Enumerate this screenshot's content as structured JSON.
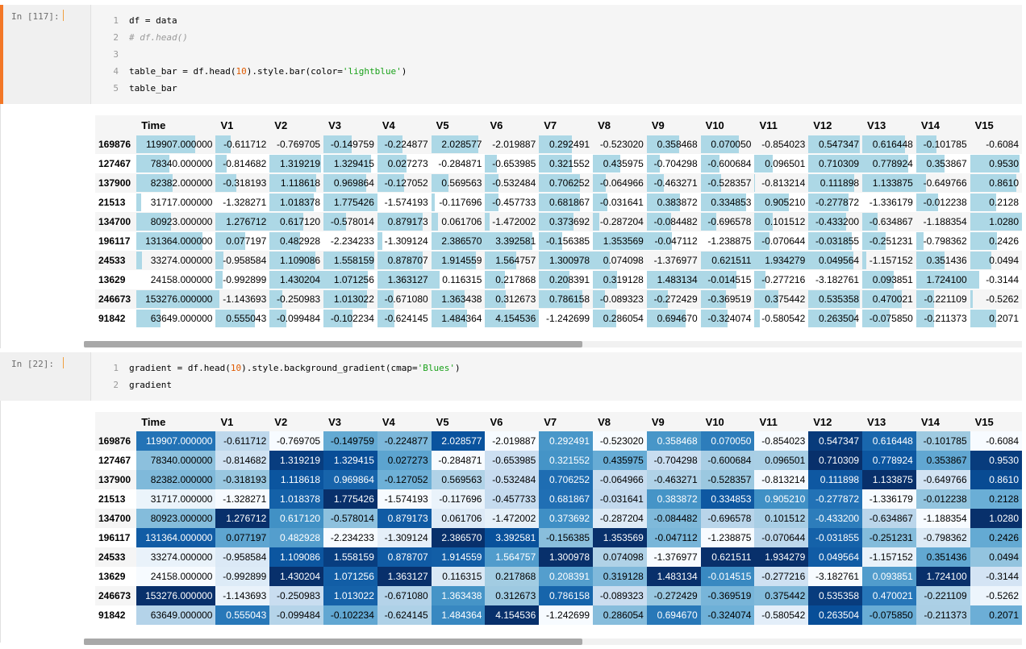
{
  "cells": [
    {
      "prompt": "In [117]:",
      "code": [
        {
          "n": "1",
          "parts": [
            {
              "t": "df = data",
              "c": ""
            }
          ]
        },
        {
          "n": "2",
          "parts": [
            {
              "t": "# df.head()",
              "c": "kw-comment"
            }
          ]
        },
        {
          "n": "3",
          "parts": [
            {
              "t": "",
              "c": ""
            }
          ]
        },
        {
          "n": "4",
          "parts": [
            {
              "t": "table_bar = df.head(",
              "c": ""
            },
            {
              "t": "10",
              "c": "kw-num"
            },
            {
              "t": ").style.bar(color=",
              "c": ""
            },
            {
              "t": "'lightblue'",
              "c": "kw-str"
            },
            {
              "t": ")",
              "c": ""
            }
          ]
        },
        {
          "n": "5",
          "parts": [
            {
              "t": "table_bar",
              "c": ""
            }
          ]
        }
      ]
    },
    {
      "prompt": "In [22]:",
      "code": [
        {
          "n": "1",
          "parts": [
            {
              "t": "gradient = df.head(",
              "c": ""
            },
            {
              "t": "10",
              "c": "kw-num"
            },
            {
              "t": ").style.background_gradient(cmap=",
              "c": ""
            },
            {
              "t": "'Blues'",
              "c": "kw-str"
            },
            {
              "t": ")",
              "c": ""
            }
          ]
        },
        {
          "n": "2",
          "parts": [
            {
              "t": "gradient",
              "c": ""
            }
          ]
        }
      ]
    }
  ],
  "table": {
    "columns": [
      "Time",
      "V1",
      "V2",
      "V3",
      "V4",
      "V5",
      "V6",
      "V7",
      "V8",
      "V9",
      "V10",
      "V11",
      "V12",
      "V13",
      "V14",
      "V15"
    ],
    "rows": [
      {
        "index": "169876",
        "values": [
          "119907.000000",
          "-0.611712",
          "-0.769705",
          "-0.149759",
          "-0.224877",
          "2.028577",
          "-2.019887",
          "0.292491",
          "-0.523020",
          "0.358468",
          "0.070050",
          "-0.854023",
          "0.547347",
          "0.616448",
          "-0.101785",
          "-0.6084"
        ]
      },
      {
        "index": "127467",
        "values": [
          "78340.000000",
          "-0.814682",
          "1.319219",
          "1.329415",
          "0.027273",
          "-0.284871",
          "-0.653985",
          "0.321552",
          "0.435975",
          "-0.704298",
          "-0.600684",
          "0.096501",
          "0.710309",
          "0.778924",
          "0.353867",
          "0.9530"
        ]
      },
      {
        "index": "137900",
        "values": [
          "82382.000000",
          "-0.318193",
          "1.118618",
          "0.969864",
          "-0.127052",
          "0.569563",
          "-0.532484",
          "0.706252",
          "-0.064966",
          "-0.463271",
          "-0.528357",
          "-0.813214",
          "0.111898",
          "1.133875",
          "-0.649766",
          "0.8610"
        ]
      },
      {
        "index": "21513",
        "values": [
          "31717.000000",
          "-1.328271",
          "1.018378",
          "1.775426",
          "-1.574193",
          "-0.117696",
          "-0.457733",
          "0.681867",
          "-0.031641",
          "0.383872",
          "0.334853",
          "0.905210",
          "-0.277872",
          "-1.336179",
          "-0.012238",
          "0.2128"
        ]
      },
      {
        "index": "134700",
        "values": [
          "80923.000000",
          "1.276712",
          "0.617120",
          "-0.578014",
          "0.879173",
          "0.061706",
          "-1.472002",
          "0.373692",
          "-0.287204",
          "-0.084482",
          "-0.696578",
          "0.101512",
          "-0.433200",
          "-0.634867",
          "-1.188354",
          "1.0280"
        ]
      },
      {
        "index": "196117",
        "values": [
          "131364.000000",
          "0.077197",
          "0.482928",
          "-2.234233",
          "-1.309124",
          "2.386570",
          "3.392581",
          "-0.156385",
          "1.353569",
          "-0.047112",
          "-1.238875",
          "-0.070644",
          "-0.031855",
          "-0.251231",
          "-0.798362",
          "0.2426"
        ]
      },
      {
        "index": "24533",
        "values": [
          "33274.000000",
          "-0.958584",
          "1.109086",
          "1.558159",
          "0.878707",
          "1.914559",
          "1.564757",
          "1.300978",
          "0.074098",
          "-1.376977",
          "0.621511",
          "1.934279",
          "0.049564",
          "-1.157152",
          "0.351436",
          "0.0494"
        ]
      },
      {
        "index": "13629",
        "values": [
          "24158.000000",
          "-0.992899",
          "1.430204",
          "1.071256",
          "1.363127",
          "0.116315",
          "0.217868",
          "0.208391",
          "0.319128",
          "1.483134",
          "-0.014515",
          "-0.277216",
          "-3.182761",
          "0.093851",
          "1.724100",
          "-0.3144"
        ]
      },
      {
        "index": "246673",
        "values": [
          "153276.000000",
          "-1.143693",
          "-0.250983",
          "1.013022",
          "-0.671080",
          "1.363438",
          "0.312673",
          "0.786158",
          "-0.089323",
          "-0.272429",
          "-0.369519",
          "0.375442",
          "0.535358",
          "0.470021",
          "-0.221109",
          "-0.5262"
        ]
      },
      {
        "index": "91842",
        "values": [
          "63649.000000",
          "0.555043",
          "-0.099484",
          "-0.102234",
          "-0.624145",
          "1.484364",
          "4.154536",
          "-1.242699",
          "0.286054",
          "0.694670",
          "-0.324074",
          "-0.580542",
          "0.263504",
          "-0.075850",
          "-0.211373",
          "0.2071"
        ]
      }
    ]
  },
  "colors": {
    "bar": "#add8e6",
    "prompt_border": "#f37726",
    "blues_light": "#f7fbff",
    "blues_dark": "#08306b"
  }
}
